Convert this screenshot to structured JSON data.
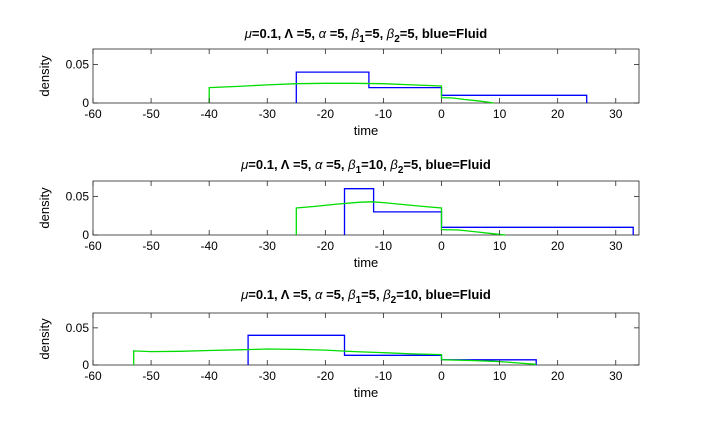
{
  "chart_data": [
    {
      "type": "line",
      "title_parts": [
        {
          "t": "μ",
          "style": "italic"
        },
        {
          "t": "=0.1, "
        },
        {
          "t": "Λ"
        },
        {
          "t": " =5, "
        },
        {
          "t": "α",
          "style": "italic"
        },
        {
          "t": " =5, "
        },
        {
          "t": "β",
          "style": "italic"
        },
        {
          "t": "1",
          "sub": true
        },
        {
          "t": "=5, "
        },
        {
          "t": "β",
          "style": "italic"
        },
        {
          "t": "2",
          "sub": true
        },
        {
          "t": "=5, blue=Fluid"
        }
      ],
      "xlabel": "time",
      "ylabel": "density",
      "xlim": [
        -60,
        34
      ],
      "ylim": [
        0,
        0.07
      ],
      "xticks": [
        -60,
        -50,
        -40,
        -30,
        -20,
        -10,
        0,
        10,
        20,
        30
      ],
      "yticks": [
        {
          "v": 0,
          "label": "0"
        },
        {
          "v": 0.05,
          "label": "0.05"
        }
      ],
      "series": [
        {
          "color": "#0000ff",
          "points": [
            [
              -25,
              0
            ],
            [
              -25,
              0.04
            ],
            [
              -12.5,
              0.04
            ],
            [
              -12.5,
              0.02
            ],
            [
              0,
              0.02
            ],
            [
              0,
              0.01
            ],
            [
              25,
              0.01
            ],
            [
              25,
              0
            ]
          ]
        },
        {
          "color": "#00dd00",
          "points": [
            [
              -40,
              0
            ],
            [
              -40,
              0.02
            ],
            [
              -35,
              0.0215
            ],
            [
              -30,
              0.0235
            ],
            [
              -25,
              0.025
            ],
            [
              -20,
              0.0255
            ],
            [
              -15,
              0.0255
            ],
            [
              -10,
              0.025
            ],
            [
              -5,
              0.0235
            ],
            [
              0,
              0.022
            ],
            [
              0,
              0.007
            ],
            [
              2,
              0.0065
            ],
            [
              4,
              0.0045
            ],
            [
              6,
              0.003
            ],
            [
              8,
              0.0012
            ],
            [
              9,
              0
            ]
          ]
        }
      ]
    },
    {
      "type": "line",
      "title_parts": [
        {
          "t": "μ",
          "style": "italic"
        },
        {
          "t": "=0.1, "
        },
        {
          "t": "Λ"
        },
        {
          "t": " =5, "
        },
        {
          "t": "α",
          "style": "italic"
        },
        {
          "t": " =5, "
        },
        {
          "t": "β",
          "style": "italic"
        },
        {
          "t": "1",
          "sub": true
        },
        {
          "t": "=10, "
        },
        {
          "t": "β",
          "style": "italic"
        },
        {
          "t": "2",
          "sub": true
        },
        {
          "t": "=5, blue=Fluid"
        }
      ],
      "xlabel": "time",
      "ylabel": "density",
      "xlim": [
        -60,
        34
      ],
      "ylim": [
        0,
        0.07
      ],
      "xticks": [
        -60,
        -50,
        -40,
        -30,
        -20,
        -10,
        0,
        10,
        20,
        30
      ],
      "yticks": [
        {
          "v": 0,
          "label": "0"
        },
        {
          "v": 0.05,
          "label": "0.05"
        }
      ],
      "series": [
        {
          "color": "#0000ff",
          "points": [
            [
              -16.7,
              0
            ],
            [
              -16.7,
              0.06
            ],
            [
              -11.7,
              0.06
            ],
            [
              -11.7,
              0.03
            ],
            [
              0,
              0.03
            ],
            [
              0,
              0.01
            ],
            [
              33,
              0.01
            ],
            [
              33,
              0
            ]
          ]
        },
        {
          "color": "#00dd00",
          "points": [
            [
              -25,
              0
            ],
            [
              -25,
              0.035
            ],
            [
              -22,
              0.037
            ],
            [
              -18,
              0.04
            ],
            [
              -14,
              0.0425
            ],
            [
              -12,
              0.043
            ],
            [
              -10,
              0.042
            ],
            [
              -6,
              0.039
            ],
            [
              -3,
              0.037
            ],
            [
              0,
              0.035
            ],
            [
              0,
              0.007
            ],
            [
              3,
              0.0065
            ],
            [
              6,
              0.004
            ],
            [
              9,
              0.0015
            ],
            [
              11,
              0
            ]
          ]
        }
      ]
    },
    {
      "type": "line",
      "title_parts": [
        {
          "t": "μ",
          "style": "italic"
        },
        {
          "t": "=0.1, "
        },
        {
          "t": "Λ"
        },
        {
          "t": " =5, "
        },
        {
          "t": "α",
          "style": "italic"
        },
        {
          "t": " =5, "
        },
        {
          "t": "β",
          "style": "italic"
        },
        {
          "t": "1",
          "sub": true
        },
        {
          "t": "=5, "
        },
        {
          "t": "β",
          "style": "italic"
        },
        {
          "t": "2",
          "sub": true
        },
        {
          "t": "=10, blue=Fluid"
        }
      ],
      "xlabel": "time",
      "ylabel": "density",
      "xlim": [
        -60,
        34
      ],
      "ylim": [
        0,
        0.07
      ],
      "xticks": [
        -60,
        -50,
        -40,
        -30,
        -20,
        -10,
        0,
        10,
        20,
        30
      ],
      "yticks": [
        {
          "v": 0,
          "label": "0"
        },
        {
          "v": 0.05,
          "label": "0.05"
        }
      ],
      "series": [
        {
          "color": "#0000ff",
          "points": [
            [
              -33.3,
              0
            ],
            [
              -33.3,
              0.04
            ],
            [
              -16.7,
              0.04
            ],
            [
              -16.7,
              0.013
            ],
            [
              0,
              0.013
            ],
            [
              0,
              0.007
            ],
            [
              16.3,
              0.007
            ],
            [
              16.3,
              0
            ]
          ]
        },
        {
          "color": "#00dd00",
          "points": [
            [
              -53,
              0
            ],
            [
              -53,
              0.019
            ],
            [
              -50,
              0.018
            ],
            [
              -45,
              0.0185
            ],
            [
              -40,
              0.0195
            ],
            [
              -35,
              0.0205
            ],
            [
              -30,
              0.0215
            ],
            [
              -25,
              0.021
            ],
            [
              -20,
              0.02
            ],
            [
              -15,
              0.018
            ],
            [
              -10,
              0.0165
            ],
            [
              -5,
              0.015
            ],
            [
              0,
              0.014
            ],
            [
              0,
              0.007
            ],
            [
              5,
              0.006
            ],
            [
              9,
              0.005
            ],
            [
              11,
              0.004
            ],
            [
              13.5,
              0.0025
            ],
            [
              16.3,
              0.001
            ]
          ]
        }
      ]
    }
  ]
}
